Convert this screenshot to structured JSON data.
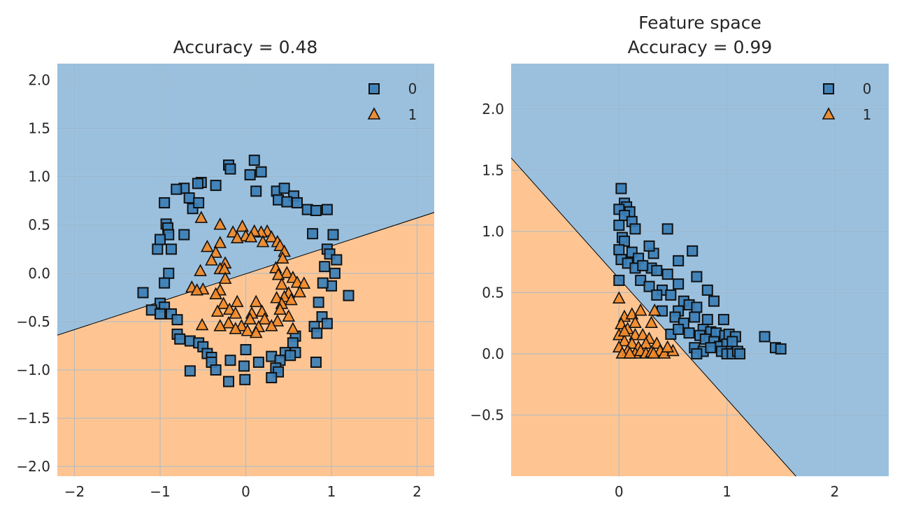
{
  "colors": {
    "class0_region": "#9ac0de",
    "class1_region": "#fec593",
    "class0_marker": "#3b7fb6",
    "class1_marker": "#f28a28",
    "grid_on_blue": "#7ea4c1",
    "grid_on_orange": "#e0ad82",
    "marker_edge": "#111111"
  },
  "chart_data": [
    {
      "type": "scatter",
      "title": "Accuracy = 0.48",
      "xlim": [
        -2.2,
        2.2
      ],
      "ylim": [
        -2.1,
        2.17
      ],
      "xticks": [
        -2,
        -1,
        0,
        1,
        2
      ],
      "yticks": [
        -2.0,
        -1.5,
        -1.0,
        -0.5,
        0.0,
        0.5,
        1.0,
        1.5,
        2.0
      ],
      "xtick_labels": [
        "−2",
        "−1",
        "0",
        "1",
        "2"
      ],
      "ytick_labels": [
        "−2.0",
        "−1.5",
        "−1.0",
        "−0.5",
        "0.0",
        "0.5",
        "1.0",
        "1.5",
        "2.0"
      ],
      "grid": true,
      "legend": {
        "placement": "top-right",
        "entries": [
          "0",
          "1"
        ]
      },
      "decision_boundary": {
        "points": [
          [
            -2.2,
            -0.64
          ],
          [
            2.2,
            0.63
          ]
        ],
        "above_class": "0",
        "below_class": "1"
      },
      "series": [
        {
          "name": "0",
          "marker": "square",
          "points": [
            [
              0.1,
              1.17
            ],
            [
              -0.2,
              1.12
            ],
            [
              0.18,
              1.05
            ],
            [
              -0.18,
              1.08
            ],
            [
              0.05,
              1.02
            ],
            [
              -0.52,
              0.94
            ],
            [
              -0.56,
              0.93
            ],
            [
              -0.35,
              0.91
            ],
            [
              -0.72,
              0.88
            ],
            [
              0.12,
              0.85
            ],
            [
              0.36,
              0.85
            ],
            [
              0.45,
              0.88
            ],
            [
              0.56,
              0.8
            ],
            [
              -0.81,
              0.87
            ],
            [
              0.38,
              0.76
            ],
            [
              -0.66,
              0.78
            ],
            [
              0.48,
              0.74
            ],
            [
              -0.95,
              0.73
            ],
            [
              -0.62,
              0.67
            ],
            [
              -0.55,
              0.73
            ],
            [
              0.72,
              0.66
            ],
            [
              0.82,
              0.65
            ],
            [
              0.95,
              0.66
            ],
            [
              0.6,
              0.73
            ],
            [
              -0.93,
              0.51
            ],
            [
              -0.91,
              0.47
            ],
            [
              -0.9,
              0.4
            ],
            [
              -0.72,
              0.4
            ],
            [
              0.78,
              0.41
            ],
            [
              1.02,
              0.4
            ],
            [
              -0.87,
              0.25
            ],
            [
              -1.03,
              0.25
            ],
            [
              -1.0,
              0.35
            ],
            [
              0.95,
              0.25
            ],
            [
              0.98,
              0.2
            ],
            [
              0.92,
              0.07
            ],
            [
              1.06,
              0.14
            ],
            [
              1.04,
              0.0
            ],
            [
              1.0,
              -0.13
            ],
            [
              -0.9,
              0.0
            ],
            [
              -0.95,
              -0.1
            ],
            [
              0.9,
              -0.1
            ],
            [
              -1.2,
              -0.2
            ],
            [
              1.2,
              -0.23
            ],
            [
              0.85,
              -0.3
            ],
            [
              -1.0,
              -0.31
            ],
            [
              -0.95,
              -0.35
            ],
            [
              0.89,
              -0.45
            ],
            [
              -1.1,
              -0.38
            ],
            [
              -1.0,
              -0.42
            ],
            [
              -0.87,
              -0.42
            ],
            [
              -0.8,
              -0.48
            ],
            [
              0.95,
              -0.52
            ],
            [
              0.8,
              -0.55
            ],
            [
              0.83,
              -0.62
            ],
            [
              0.58,
              -0.65
            ],
            [
              -0.8,
              -0.63
            ],
            [
              -0.77,
              -0.68
            ],
            [
              -0.65,
              -0.7
            ],
            [
              0.55,
              -0.72
            ],
            [
              -0.55,
              -0.72
            ],
            [
              -0.5,
              -0.76
            ],
            [
              0.0,
              -0.79
            ],
            [
              0.46,
              -0.82
            ],
            [
              0.58,
              -0.82
            ],
            [
              0.52,
              -0.85
            ],
            [
              -0.45,
              -0.83
            ],
            [
              -0.4,
              -0.87
            ],
            [
              0.82,
              -0.92
            ],
            [
              0.3,
              -0.86
            ],
            [
              0.4,
              -0.9
            ],
            [
              0.15,
              -0.92
            ],
            [
              -0.18,
              -0.9
            ],
            [
              -0.4,
              -0.92
            ],
            [
              -0.02,
              -0.96
            ],
            [
              0.35,
              -0.98
            ],
            [
              -0.35,
              -1.0
            ],
            [
              -0.65,
              -1.01
            ],
            [
              0.38,
              -1.02
            ],
            [
              -0.01,
              -1.1
            ],
            [
              0.3,
              -1.08
            ],
            [
              -0.2,
              -1.12
            ]
          ]
        },
        {
          "name": "1",
          "marker": "triangle",
          "points": [
            [
              -0.52,
              0.57
            ],
            [
              -0.04,
              0.48
            ],
            [
              -0.3,
              0.5
            ],
            [
              0.25,
              0.43
            ],
            [
              0.18,
              0.42
            ],
            [
              0.1,
              0.43
            ],
            [
              -0.15,
              0.42
            ],
            [
              0.3,
              0.37
            ],
            [
              0.37,
              0.32
            ],
            [
              0.0,
              0.38
            ],
            [
              0.06,
              0.37
            ],
            [
              -0.1,
              0.36
            ],
            [
              0.2,
              0.32
            ],
            [
              -0.45,
              0.27
            ],
            [
              -0.3,
              0.31
            ],
            [
              0.4,
              0.28
            ],
            [
              0.45,
              0.22
            ],
            [
              -0.35,
              0.21
            ],
            [
              0.43,
              0.15
            ],
            [
              -0.4,
              0.13
            ],
            [
              -0.24,
              0.1
            ],
            [
              -0.3,
              0.04
            ],
            [
              -0.53,
              0.02
            ],
            [
              -0.25,
              0.04
            ],
            [
              0.35,
              0.05
            ],
            [
              0.48,
              0.0
            ],
            [
              0.38,
              -0.02
            ],
            [
              -0.24,
              -0.06
            ],
            [
              0.55,
              -0.05
            ],
            [
              0.6,
              -0.1
            ],
            [
              0.42,
              -0.12
            ],
            [
              0.68,
              -0.11
            ],
            [
              -0.5,
              -0.17
            ],
            [
              -0.63,
              -0.15
            ],
            [
              -0.57,
              -0.18
            ],
            [
              0.63,
              -0.2
            ],
            [
              -0.3,
              -0.18
            ],
            [
              0.5,
              -0.21
            ],
            [
              -0.35,
              -0.22
            ],
            [
              0.45,
              -0.25
            ],
            [
              0.36,
              -0.26
            ],
            [
              0.53,
              -0.28
            ],
            [
              0.12,
              -0.3
            ],
            [
              -0.1,
              -0.3
            ],
            [
              -0.26,
              -0.32
            ],
            [
              0.42,
              -0.32
            ],
            [
              -0.19,
              -0.38
            ],
            [
              0.07,
              -0.42
            ],
            [
              0.19,
              -0.4
            ],
            [
              0.4,
              -0.38
            ],
            [
              0.22,
              -0.48
            ],
            [
              -0.12,
              -0.42
            ],
            [
              0.5,
              -0.45
            ],
            [
              -0.33,
              -0.4
            ],
            [
              0.05,
              -0.48
            ],
            [
              -0.2,
              -0.52
            ],
            [
              -0.51,
              -0.54
            ],
            [
              0.37,
              -0.5
            ],
            [
              -0.05,
              -0.55
            ],
            [
              0.15,
              -0.56
            ],
            [
              -0.3,
              -0.55
            ],
            [
              0.02,
              -0.6
            ],
            [
              0.3,
              -0.55
            ],
            [
              -0.12,
              -0.58
            ],
            [
              0.55,
              -0.58
            ],
            [
              0.12,
              -0.62
            ]
          ]
        }
      ]
    },
    {
      "type": "scatter",
      "title": "Feature space",
      "subtitle": "Accuracy = 0.99",
      "xlim": [
        -1.0,
        2.5
      ],
      "ylim": [
        -1.0,
        2.37
      ],
      "xticks": [
        0,
        1,
        2
      ],
      "yticks": [
        -0.5,
        0.0,
        0.5,
        1.0,
        1.5,
        2.0
      ],
      "xtick_labels": [
        "0",
        "1",
        "2"
      ],
      "ytick_labels": [
        "−0.5",
        "0.0",
        "0.5",
        "1.0",
        "1.5",
        "2.0"
      ],
      "grid": true,
      "legend": {
        "placement": "top-right",
        "entries": [
          "0",
          "1"
        ]
      },
      "decision_boundary": {
        "points": [
          [
            -1.0,
            1.6
          ],
          [
            1.64,
            -1.0
          ]
        ],
        "above_class": "0",
        "below_class": "1"
      },
      "series": [
        {
          "name": "0",
          "marker": "square",
          "points": [
            [
              0.02,
              1.35
            ],
            [
              0.05,
              1.23
            ],
            [
              0.07,
              1.2
            ],
            [
              0.0,
              1.18
            ],
            [
              0.1,
              1.16
            ],
            [
              0.05,
              1.13
            ],
            [
              0.12,
              1.08
            ],
            [
              0.0,
              1.05
            ],
            [
              0.15,
              1.02
            ],
            [
              0.45,
              1.02
            ],
            [
              0.03,
              0.95
            ],
            [
              0.05,
              0.92
            ],
            [
              0.0,
              0.85
            ],
            [
              0.12,
              0.83
            ],
            [
              0.32,
              0.82
            ],
            [
              0.28,
              0.88
            ],
            [
              0.68,
              0.84
            ],
            [
              0.02,
              0.77
            ],
            [
              0.18,
              0.78
            ],
            [
              0.08,
              0.74
            ],
            [
              0.55,
              0.76
            ],
            [
              0.3,
              0.7
            ],
            [
              0.15,
              0.7
            ],
            [
              0.22,
              0.72
            ],
            [
              0.35,
              0.68
            ],
            [
              0.45,
              0.65
            ],
            [
              0.72,
              0.63
            ],
            [
              0.0,
              0.6
            ],
            [
              0.2,
              0.6
            ],
            [
              0.28,
              0.55
            ],
            [
              0.4,
              0.52
            ],
            [
              0.55,
              0.57
            ],
            [
              0.35,
              0.48
            ],
            [
              0.48,
              0.48
            ],
            [
              0.82,
              0.52
            ],
            [
              0.6,
              0.43
            ],
            [
              0.65,
              0.4
            ],
            [
              0.72,
              0.38
            ],
            [
              0.88,
              0.43
            ],
            [
              0.4,
              0.35
            ],
            [
              0.55,
              0.35
            ],
            [
              0.52,
              0.3
            ],
            [
              0.7,
              0.3
            ],
            [
              0.82,
              0.28
            ],
            [
              0.97,
              0.28
            ],
            [
              0.6,
              0.25
            ],
            [
              0.78,
              0.2
            ],
            [
              0.85,
              0.18
            ],
            [
              0.48,
              0.16
            ],
            [
              0.55,
              0.2
            ],
            [
              0.65,
              0.17
            ],
            [
              0.75,
              0.15
            ],
            [
              0.9,
              0.17
            ],
            [
              0.98,
              0.15
            ],
            [
              1.02,
              0.16
            ],
            [
              1.08,
              0.14
            ],
            [
              1.35,
              0.14
            ],
            [
              0.8,
              0.12
            ],
            [
              0.88,
              0.1
            ],
            [
              0.93,
              0.06
            ],
            [
              1.0,
              0.08
            ],
            [
              1.05,
              0.1
            ],
            [
              0.7,
              0.05
            ],
            [
              0.78,
              0.02
            ],
            [
              0.85,
              0.05
            ],
            [
              0.95,
              0.02
            ],
            [
              1.0,
              0.0
            ],
            [
              1.05,
              0.0
            ],
            [
              1.1,
              0.02
            ],
            [
              1.12,
              0.0
            ],
            [
              0.72,
              0.0
            ],
            [
              1.45,
              0.05
            ],
            [
              1.5,
              0.04
            ]
          ]
        },
        {
          "name": "1",
          "marker": "triangle",
          "points": [
            [
              0.0,
              0.45
            ],
            [
              0.05,
              0.3
            ],
            [
              0.02,
              0.24
            ],
            [
              0.12,
              0.32
            ],
            [
              0.2,
              0.35
            ],
            [
              0.33,
              0.35
            ],
            [
              0.3,
              0.25
            ],
            [
              0.08,
              0.2
            ],
            [
              0.0,
              0.15
            ],
            [
              0.15,
              0.15
            ],
            [
              0.22,
              0.15
            ],
            [
              0.28,
              0.12
            ],
            [
              0.05,
              0.1
            ],
            [
              0.12,
              0.08
            ],
            [
              0.18,
              0.05
            ],
            [
              0.25,
              0.08
            ],
            [
              0.35,
              0.08
            ],
            [
              0.0,
              0.05
            ],
            [
              0.08,
              0.02
            ],
            [
              0.15,
              0.0
            ],
            [
              0.2,
              0.02
            ],
            [
              0.25,
              0.0
            ],
            [
              0.3,
              0.01
            ],
            [
              0.38,
              0.02
            ],
            [
              0.42,
              0.0
            ],
            [
              0.5,
              0.02
            ],
            [
              0.03,
              0.0
            ],
            [
              0.1,
              0.0
            ],
            [
              0.32,
              0.0
            ],
            [
              0.45,
              0.05
            ],
            [
              0.05,
              0.18
            ],
            [
              0.15,
              0.25
            ]
          ]
        }
      ]
    }
  ]
}
